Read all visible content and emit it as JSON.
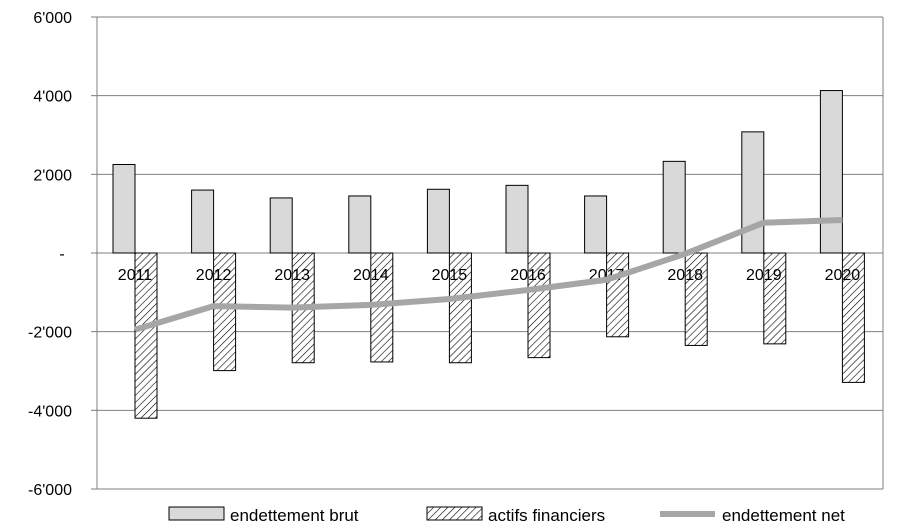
{
  "chart_data": {
    "type": "bar",
    "title": "",
    "xlabel": "",
    "ylabel": "",
    "categories": [
      "2011",
      "2012",
      "2013",
      "2014",
      "2015",
      "2016",
      "2017",
      "2018",
      "2019",
      "2020"
    ],
    "ylim": [
      -6000,
      6000
    ],
    "yticks": [
      {
        "value": 6000,
        "label": "6'000"
      },
      {
        "value": 4000,
        "label": "4'000"
      },
      {
        "value": 2000,
        "label": "2'000"
      },
      {
        "value": 0,
        "label": "-"
      },
      {
        "value": -2000,
        "label": "-2'000"
      },
      {
        "value": -4000,
        "label": "-4'000"
      },
      {
        "value": -6000,
        "label": "-6'000"
      }
    ],
    "grid": true,
    "legend_position": "bottom",
    "series": [
      {
        "name": "endettement brut",
        "kind": "bar",
        "style": "solid-light-gray",
        "values": [
          2250,
          1600,
          1400,
          1450,
          1620,
          1720,
          1450,
          2330,
          3080,
          4130
        ]
      },
      {
        "name": "actifs financiers",
        "kind": "bar",
        "style": "hatched",
        "values": [
          -4200,
          -2990,
          -2790,
          -2770,
          -2790,
          -2660,
          -2130,
          -2350,
          -2310,
          -3290
        ]
      },
      {
        "name": "endettement net",
        "kind": "line",
        "style": "thick-gray",
        "values": [
          -1950,
          -1350,
          -1390,
          -1320,
          -1170,
          -940,
          -680,
          -20,
          770,
          840
        ]
      }
    ],
    "colors": {
      "bar_fill": "#d9d9d9",
      "line": "#a6a6a6",
      "grid": "#7f7f7f",
      "outline": "#000000"
    }
  }
}
